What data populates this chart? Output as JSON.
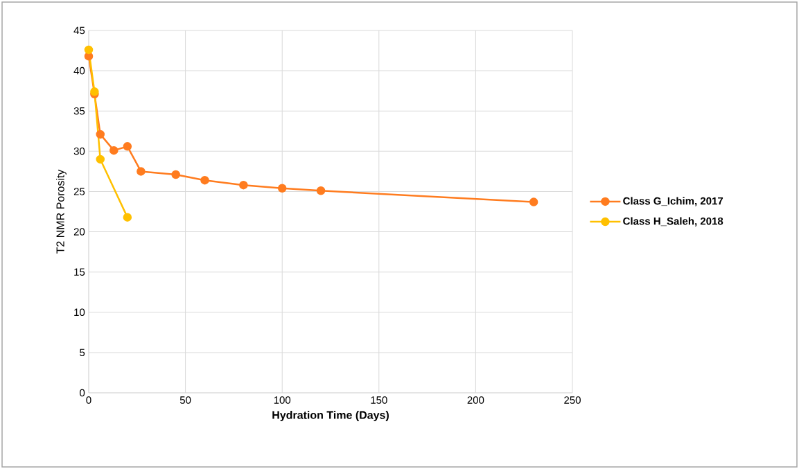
{
  "chart_data": {
    "type": "line",
    "xlabel": "Hydration Time (Days)",
    "ylabel": "T2 NMR Porosity",
    "xlim": [
      0,
      250
    ],
    "xticks": [
      0,
      50,
      100,
      150,
      200,
      250
    ],
    "ylim": [
      0,
      45
    ],
    "yticks": [
      0,
      5,
      10,
      15,
      20,
      25,
      30,
      35,
      40,
      45
    ],
    "grid": true,
    "legend": "right",
    "marker": "circle",
    "line_style": "solid",
    "series": [
      {
        "name": "Class G_Ichim, 2017",
        "color": "#ff7c1f",
        "x": [
          0,
          3,
          6,
          13,
          20,
          27,
          45,
          60,
          80,
          100,
          120,
          230
        ],
        "values": [
          41.8,
          37.1,
          32.1,
          30.1,
          30.6,
          27.5,
          27.1,
          26.4,
          25.8,
          25.4,
          25.1,
          23.7
        ]
      },
      {
        "name": "Class H_Saleh, 2018",
        "color": "#ffc000",
        "x": [
          0,
          3,
          6,
          20
        ],
        "values": [
          42.6,
          37.4,
          29.0,
          21.8
        ]
      }
    ]
  }
}
